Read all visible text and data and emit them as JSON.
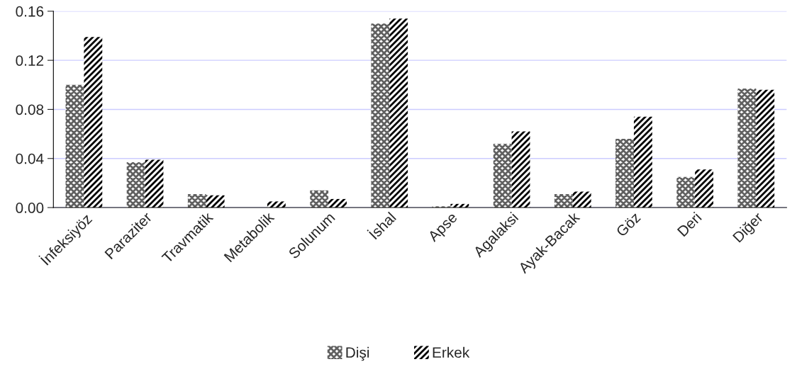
{
  "chart_data": {
    "type": "bar",
    "categories": [
      "İnfeksiyöz",
      "Paraziter",
      "Travmatik",
      "Metabolik",
      "Solunum",
      "İshal",
      "Apse",
      "Agalaksi",
      "Ayak-Bacak",
      "Göz",
      "Deri",
      "Diğer"
    ],
    "series": [
      {
        "name": "Dişi",
        "color": "#606060",
        "values": [
          0.1,
          0.037,
          0.011,
          0,
          0.014,
          0.15,
          0.001,
          0.052,
          0.011,
          0.056,
          0.025,
          0.097
        ]
      },
      {
        "name": "Erkek",
        "color": "#000000",
        "values": [
          0.139,
          0.039,
          0.01,
          0.005,
          0.007,
          0.154,
          0.003,
          0.062,
          0.013,
          0.074,
          0.031,
          0.096
        ]
      }
    ],
    "ylim": [
      0,
      0.16
    ],
    "yticks": [
      {
        "value": 0,
        "label": "0.00"
      },
      {
        "value": 0.04,
        "label": "0.04"
      },
      {
        "value": 0.08,
        "label": "0.08"
      },
      {
        "value": 0.12,
        "label": "0.12"
      },
      {
        "value": 0.16,
        "label": "0.16"
      }
    ],
    "grid": "y",
    "legend": "bottom"
  }
}
